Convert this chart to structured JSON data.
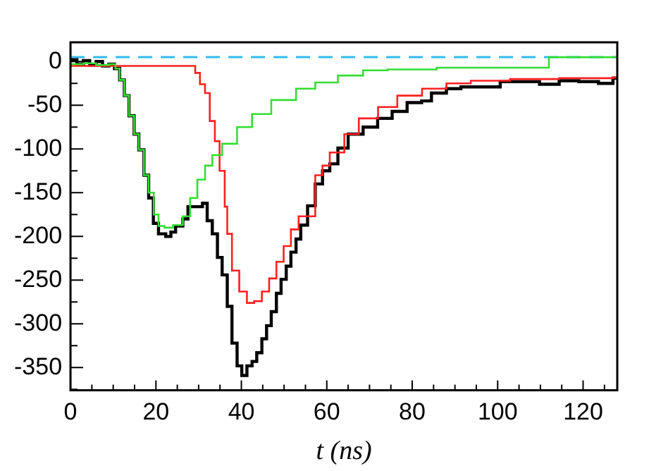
{
  "chart_data": {
    "type": "step",
    "xlabel": "t (ns)",
    "xlim": [
      0,
      128
    ],
    "ylim": [
      -376,
      22
    ],
    "xticks": [
      0,
      {
        "value": 5,
        "label": null
      },
      {
        "value": 10,
        "label": null
      },
      {
        "value": 15,
        "label": null
      },
      20,
      {
        "value": 25,
        "label": null
      },
      {
        "value": 30,
        "label": null
      },
      {
        "value": 35,
        "label": null
      },
      40,
      {
        "value": 45,
        "label": null
      },
      {
        "value": 50,
        "label": null
      },
      {
        "value": 55,
        "label": null
      },
      60,
      {
        "value": 65,
        "label": null
      },
      {
        "value": 70,
        "label": null
      },
      {
        "value": 75,
        "label": null
      },
      80,
      {
        "value": 85,
        "label": null
      },
      {
        "value": 90,
        "label": null
      },
      {
        "value": 95,
        "label": null
      },
      100,
      {
        "value": 105,
        "label": null
      },
      {
        "value": 110,
        "label": null
      },
      {
        "value": 115,
        "label": null
      },
      120,
      {
        "value": 125,
        "label": null
      }
    ],
    "yticks": [
      {
        "value": -375,
        "label": null
      },
      -350,
      {
        "value": -325,
        "label": null
      },
      -300,
      {
        "value": -275,
        "label": null
      },
      -250,
      {
        "value": -225,
        "label": null
      },
      -200,
      {
        "value": -175,
        "label": null
      },
      -150,
      {
        "value": -125,
        "label": null
      },
      -100,
      {
        "value": -75,
        "label": null
      },
      -50,
      {
        "value": -25,
        "label": null
      },
      0
    ],
    "grid": false,
    "legend": false,
    "marker": "none",
    "ref_lines": [
      {
        "axis": "y",
        "value": 5,
        "color": "#33bbee",
        "line_style": "dashed"
      }
    ],
    "series": [
      {
        "color": "#33dd33",
        "x": [
          0,
          3,
          6,
          9,
          10.5,
          11.5,
          12.6,
          13.7,
          14.9,
          16,
          17.2,
          18.3,
          19.5,
          20.6,
          22,
          24,
          26.3,
          28,
          29.7,
          31.5,
          33.2,
          35.5,
          39,
          42.5,
          47,
          52.8,
          57.3,
          62.6,
          68.5,
          74.2,
          85.7,
          97.2,
          111.6,
          112,
          128
        ],
        "values": [
          -3,
          -2,
          -4,
          -3,
          -8,
          -21,
          -39,
          -62,
          -83,
          -101,
          -130,
          -150,
          -175,
          -188,
          -190,
          -187,
          -177,
          -156,
          -135,
          -119,
          -107,
          -94,
          -75,
          -60,
          -44,
          -31,
          -24,
          -16,
          -10,
          -9,
          -7,
          -7,
          -7,
          5,
          5
        ]
      },
      {
        "color": "#ff2020",
        "x": [
          0,
          5,
          10,
          15,
          20,
          25,
          27.5,
          29.2,
          30.3,
          31.5,
          32.6,
          33.8,
          34.9,
          36.1,
          36.7,
          37.8,
          39.5,
          41.3,
          43,
          44.8,
          46.5,
          48.2,
          49.9,
          51.6,
          53.4,
          57.3,
          59,
          60.7,
          64.1,
          67.5,
          72,
          76.5,
          82.3,
          88,
          93.7,
          102.9,
          114.4,
          127,
          128
        ],
        "values": [
          -5,
          -5,
          -5,
          -5,
          -5,
          -5,
          -5,
          -13,
          -26,
          -36,
          -68,
          -91,
          -125,
          -166,
          -197,
          -239,
          -263,
          -276,
          -274,
          -263,
          -248,
          -229,
          -211,
          -192,
          -177,
          -130,
          -119,
          -104,
          -83,
          -65,
          -52,
          -39,
          -31,
          -25,
          -22,
          -20,
          -19,
          -18,
          -18
        ]
      },
      {
        "color": "#000000",
        "x": [
          0,
          1.5,
          3,
          4.5,
          6,
          7.5,
          9,
          10.3,
          11.5,
          12.6,
          13.7,
          14.9,
          16,
          17.2,
          18.3,
          19.4,
          20.6,
          22.3,
          23.5,
          24.6,
          26.3,
          27.5,
          29.2,
          30.9,
          32,
          33.2,
          34.4,
          35.5,
          36.7,
          37.8,
          39,
          40.1,
          41.3,
          42.5,
          43.6,
          44.8,
          45.9,
          47,
          48.2,
          49.3,
          50.5,
          51.6,
          52.8,
          53.9,
          55.5,
          57.3,
          59,
          60.7,
          62.6,
          65,
          68.5,
          71.9,
          75.3,
          78.8,
          82.2,
          84.5,
          88,
          91.4,
          96,
          100.6,
          105.2,
          109.8,
          114.4,
          119,
          123.6,
          127,
          128
        ],
        "values": [
          2,
          -3,
          1,
          -4,
          0,
          -5,
          -3,
          -8,
          -21,
          -39,
          -62,
          -83,
          -101,
          -130,
          -156,
          -185,
          -197,
          -200,
          -195,
          -188,
          -180,
          -166,
          -166,
          -162,
          -182,
          -197,
          -224,
          -244,
          -280,
          -322,
          -348,
          -359,
          -348,
          -343,
          -333,
          -317,
          -302,
          -286,
          -265,
          -249,
          -234,
          -218,
          -203,
          -187,
          -165,
          -140,
          -125,
          -117,
          -99,
          -83,
          -75,
          -65,
          -57,
          -47,
          -45,
          -36,
          -31,
          -29,
          -29,
          -23,
          -23,
          -26,
          -22,
          -23,
          -25,
          -19,
          -19
        ]
      }
    ]
  }
}
